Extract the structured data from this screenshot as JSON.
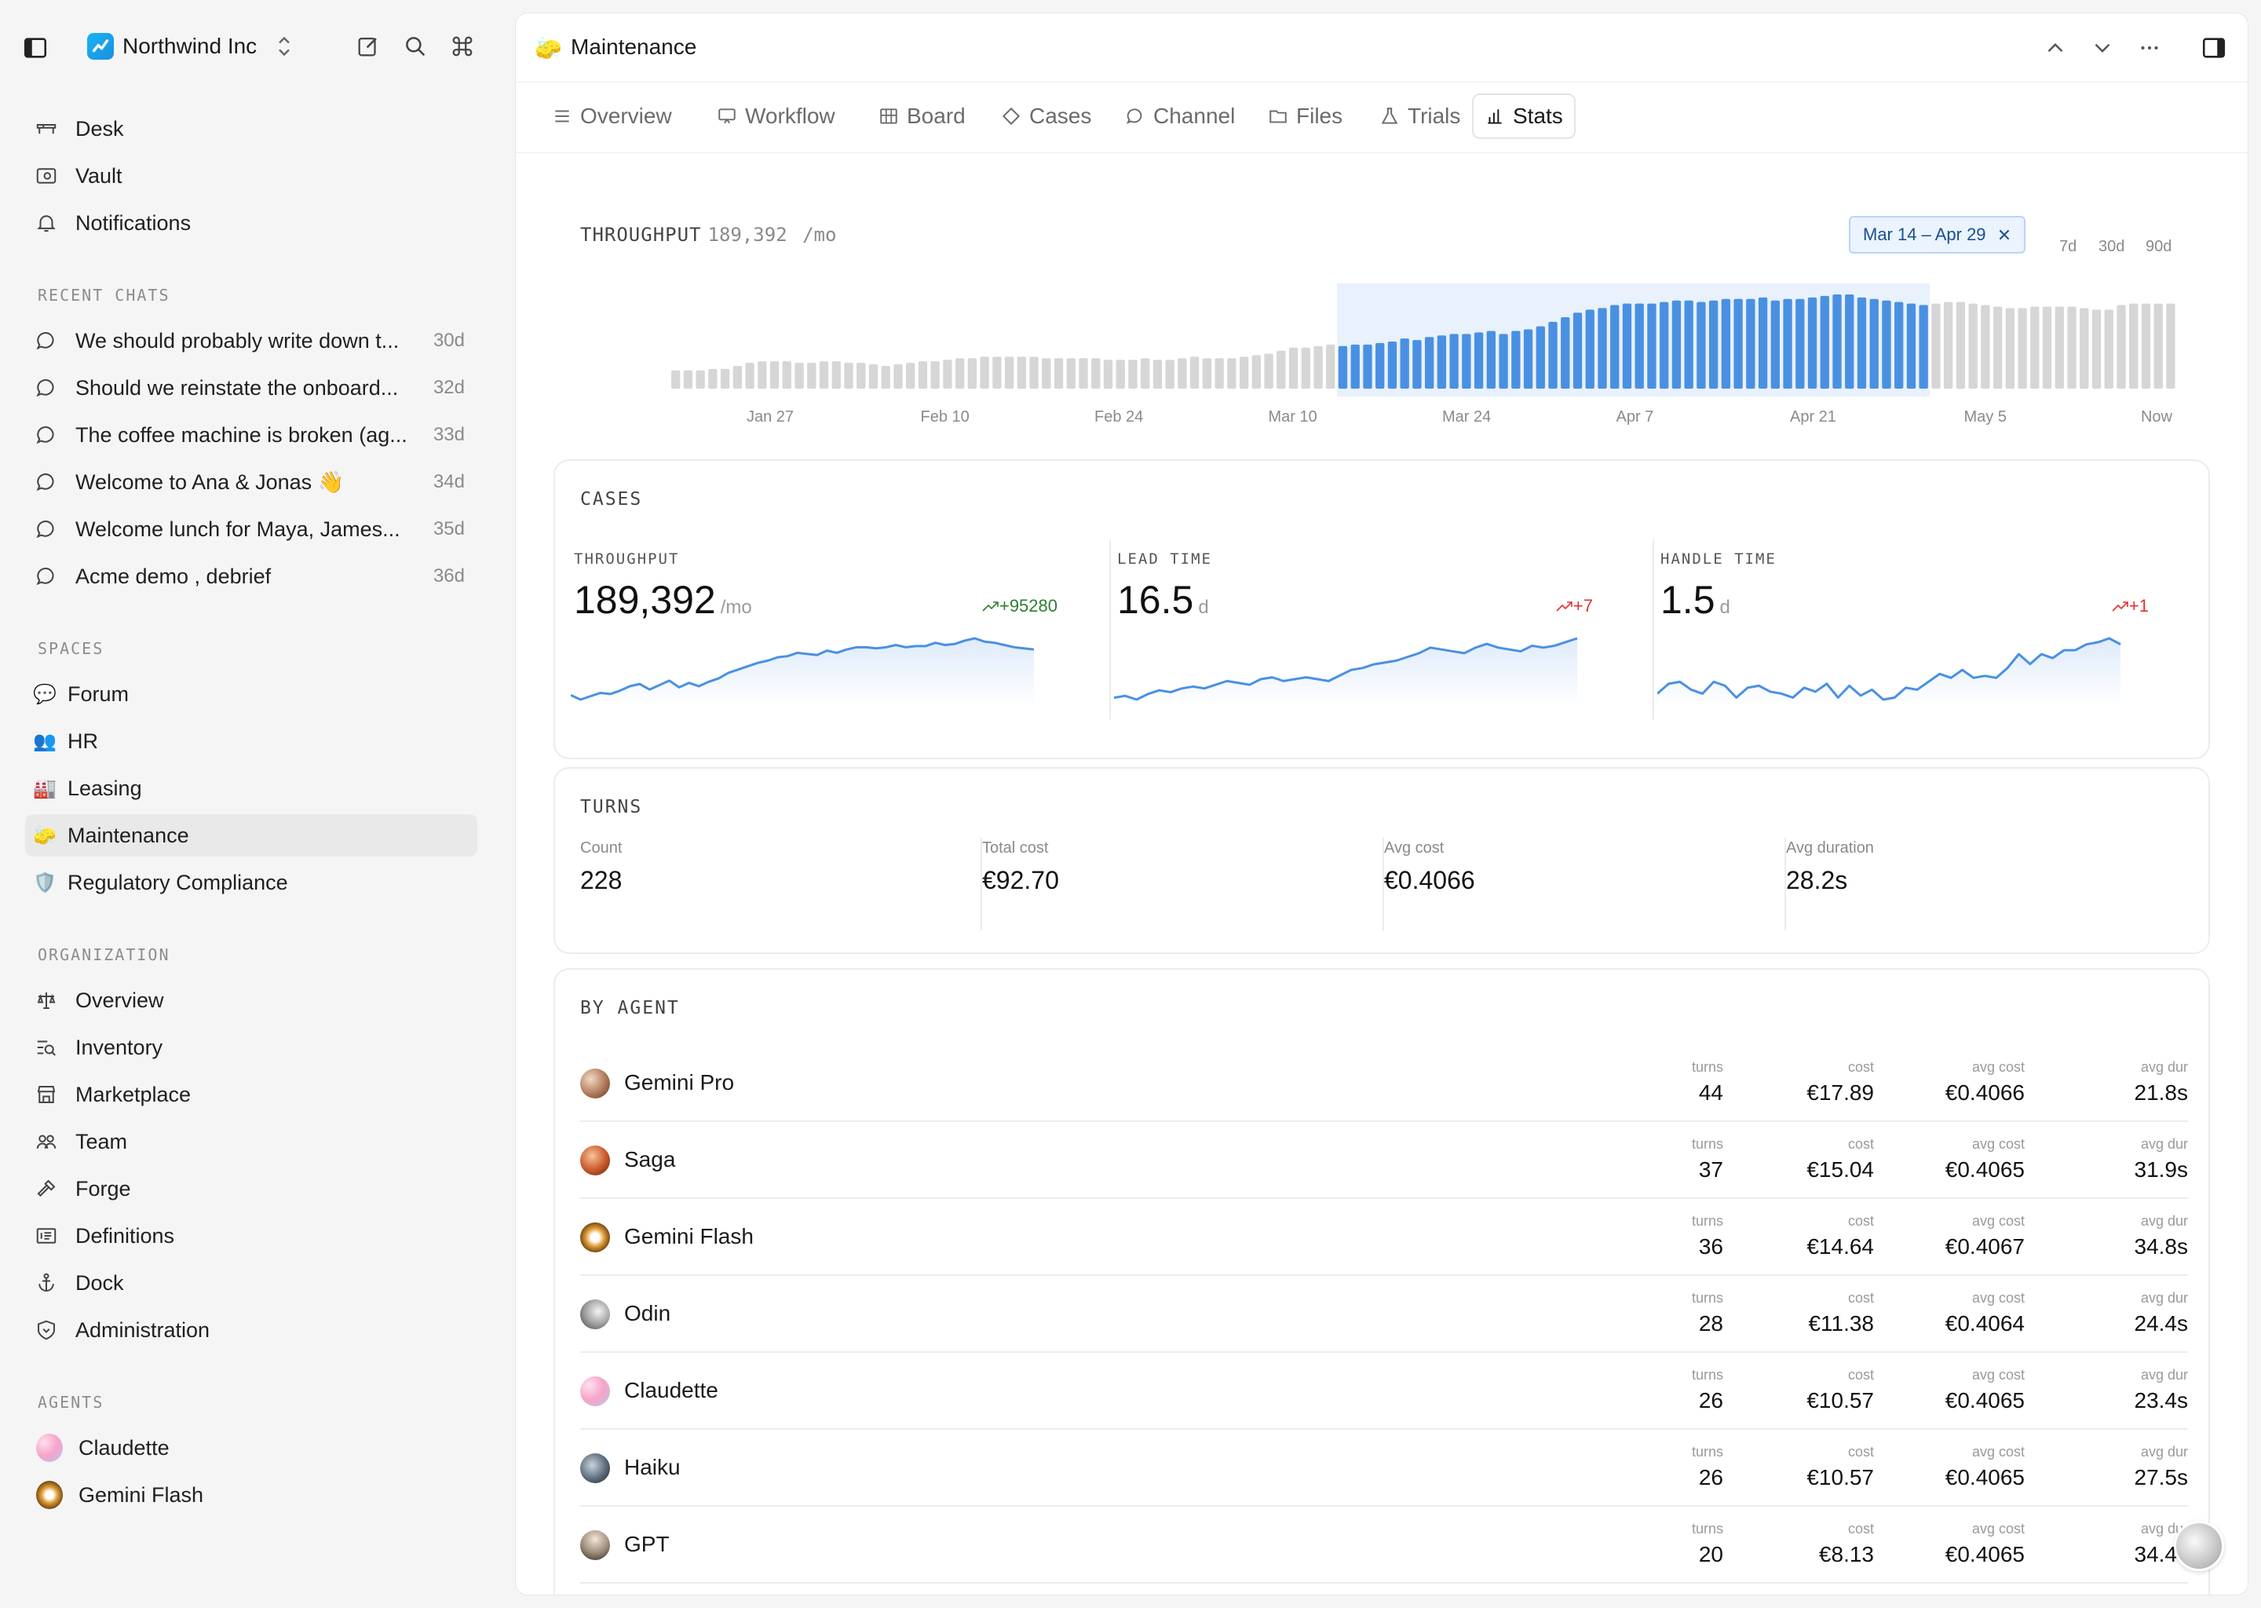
{
  "workspace": {
    "name": "Northwind Inc"
  },
  "sidebar": {
    "primary": [
      {
        "label": "Desk",
        "icon": "desk-icon"
      },
      {
        "label": "Vault",
        "icon": "vault-icon"
      },
      {
        "label": "Notifications",
        "icon": "bell-icon"
      }
    ],
    "recent_chats_title": "RECENT CHATS",
    "recent_chats": [
      {
        "label": "We should probably write down t...",
        "age": "30d"
      },
      {
        "label": "Should we reinstate the onboard...",
        "age": "32d"
      },
      {
        "label": "The coffee machine is broken (ag...",
        "age": "33d"
      },
      {
        "label": "Welcome to Ana & Jonas 👋",
        "age": "34d"
      },
      {
        "label": "Welcome lunch for Maya, James...",
        "age": "35d"
      },
      {
        "label": "Acme demo , debrief",
        "age": "36d"
      }
    ],
    "spaces_title": "SPACES",
    "spaces": [
      {
        "label": "Forum",
        "emoji": "💬"
      },
      {
        "label": "HR",
        "emoji": "👥"
      },
      {
        "label": "Leasing",
        "emoji": "🏭"
      },
      {
        "label": "Maintenance",
        "emoji": "🧽"
      },
      {
        "label": "Regulatory Compliance",
        "emoji": "🛡️"
      }
    ],
    "organization_title": "ORGANIZATION",
    "organization": [
      {
        "label": "Overview",
        "icon": "overview-icon"
      },
      {
        "label": "Inventory",
        "icon": "inventory-icon"
      },
      {
        "label": "Marketplace",
        "icon": "marketplace-icon"
      },
      {
        "label": "Team",
        "icon": "team-icon"
      },
      {
        "label": "Forge",
        "icon": "hammer-icon"
      },
      {
        "label": "Definitions",
        "icon": "definitions-icon"
      },
      {
        "label": "Dock",
        "icon": "anchor-icon"
      },
      {
        "label": "Administration",
        "icon": "shield-icon"
      }
    ],
    "agents_title": "AGENTS",
    "agents": [
      {
        "label": "Claudette"
      },
      {
        "label": "Gemini Flash"
      }
    ]
  },
  "header": {
    "title": "Maintenance",
    "space_emoji": "🧽"
  },
  "tabs": [
    {
      "label": "Overview",
      "icon": "list-icon"
    },
    {
      "label": "Workflow",
      "icon": "monitor-icon"
    },
    {
      "label": "Board",
      "icon": "board-icon"
    },
    {
      "label": "Cases",
      "icon": "diamond-icon"
    },
    {
      "label": "Channel",
      "icon": "chat-icon"
    },
    {
      "label": "Files",
      "icon": "folder-icon"
    },
    {
      "label": "Trials",
      "icon": "flask-icon"
    },
    {
      "label": "Stats",
      "icon": "bar-chart-icon"
    }
  ],
  "throughput": {
    "label": "THROUGHPUT",
    "value": "189,392",
    "unit": "/mo",
    "range_chip": "Mar 14 – Apr 29",
    "range_options": [
      "7d",
      "30d",
      "90d"
    ],
    "x_ticks": [
      "Jan 27",
      "Feb 10",
      "Feb 24",
      "Mar 10",
      "Mar 24",
      "Apr 7",
      "Apr 21",
      "May 5",
      "Now"
    ],
    "accent": "#4a90e2",
    "muted": "#d6d6d6",
    "highlight_bg": "#e8f1fc"
  },
  "chart_data": {
    "type": "bar",
    "title": "THROUGHPUT",
    "x_ticks": [
      "Jan 27",
      "Feb 10",
      "Feb 24",
      "Mar 10",
      "Mar 24",
      "Apr 7",
      "Apr 21",
      "May 5",
      "Now"
    ],
    "selected_range": [
      54,
      101
    ],
    "values": [
      12,
      12,
      12,
      13,
      13,
      15,
      17,
      18,
      18,
      18,
      17,
      17,
      18,
      18,
      17,
      17,
      16,
      15,
      16,
      17,
      18,
      18,
      19,
      20,
      20,
      21,
      21,
      21,
      21,
      21,
      20,
      20,
      20,
      20,
      20,
      19,
      19,
      19,
      20,
      19,
      19,
      20,
      21,
      20,
      20,
      20,
      21,
      22,
      23,
      25,
      27,
      27,
      28,
      29,
      28,
      29,
      29,
      30,
      31,
      33,
      32,
      34,
      35,
      36,
      36,
      37,
      38,
      36,
      38,
      39,
      41,
      44,
      47,
      50,
      52,
      53,
      55,
      56,
      56,
      56,
      57,
      58,
      58,
      57,
      58,
      59,
      59,
      59,
      60,
      58,
      59,
      59,
      60,
      61,
      62,
      62,
      60,
      59,
      58,
      57,
      56,
      55,
      56,
      57,
      57,
      56,
      55,
      54,
      53,
      53,
      54,
      54,
      54,
      54,
      53,
      52,
      52,
      55,
      56,
      56,
      56,
      56
    ]
  },
  "cases": {
    "title": "CASES",
    "metrics": [
      {
        "label": "THROUGHPUT",
        "value": "189,392",
        "unit": "/mo",
        "delta": "+95280",
        "delta_kind": "up",
        "spark": [
          50,
          46,
          49,
          52,
          51,
          54,
          58,
          60,
          55,
          59,
          63,
          57,
          61,
          58,
          62,
          65,
          70,
          73,
          76,
          79,
          81,
          84,
          85,
          88,
          87,
          86,
          90,
          88,
          91,
          93,
          93,
          92,
          93,
          95,
          93,
          94,
          94,
          97,
          95,
          96,
          99,
          101,
          98,
          97,
          95,
          93,
          92,
          91
        ]
      },
      {
        "label": "LEAD TIME",
        "value": "16.5",
        "unit": "d",
        "delta": "+7",
        "delta_kind": "bad",
        "spark": [
          10,
          11,
          9,
          12,
          14,
          13,
          15,
          16,
          15,
          17,
          19,
          18,
          17,
          20,
          21,
          19,
          20,
          21,
          20,
          19,
          22,
          25,
          26,
          28,
          29,
          30,
          32,
          34,
          37,
          36,
          35,
          34,
          37,
          39,
          37,
          36,
          35,
          38,
          37,
          38,
          40,
          42
        ]
      },
      {
        "label": "HANDLE TIME",
        "value": "1.5",
        "unit": "d",
        "delta": "+1",
        "delta_kind": "bad",
        "spark": [
          30,
          35,
          36,
          32,
          30,
          36,
          34,
          28,
          33,
          34,
          31,
          30,
          28,
          33,
          31,
          35,
          28,
          34,
          29,
          32,
          27,
          28,
          33,
          32,
          36,
          40,
          38,
          42,
          38,
          39,
          38,
          43,
          50,
          45,
          50,
          48,
          52,
          52,
          55,
          56,
          58,
          55
        ]
      }
    ]
  },
  "turns": {
    "title": "TURNS",
    "stats": [
      {
        "label": "Count",
        "value": "228"
      },
      {
        "label": "Total cost",
        "value": "€92.70"
      },
      {
        "label": "Avg cost",
        "value": "€0.4066"
      },
      {
        "label": "Avg duration",
        "value": "28.2s"
      }
    ]
  },
  "by_agent": {
    "title": "BY AGENT",
    "columns": [
      "turns",
      "cost",
      "avg cost",
      "avg dur"
    ],
    "rows": [
      {
        "name": "Gemini Pro",
        "turns": "44",
        "cost": "€17.89",
        "avg_cost": "€0.4066",
        "avg_dur": "21.8s"
      },
      {
        "name": "Saga",
        "turns": "37",
        "cost": "€15.04",
        "avg_cost": "€0.4065",
        "avg_dur": "31.9s"
      },
      {
        "name": "Gemini Flash",
        "turns": "36",
        "cost": "€14.64",
        "avg_cost": "€0.4067",
        "avg_dur": "34.8s"
      },
      {
        "name": "Odin",
        "turns": "28",
        "cost": "€11.38",
        "avg_cost": "€0.4064",
        "avg_dur": "24.4s"
      },
      {
        "name": "Claudette",
        "turns": "26",
        "cost": "€10.57",
        "avg_cost": "€0.4065",
        "avg_dur": "23.4s"
      },
      {
        "name": "Haiku",
        "turns": "26",
        "cost": "€10.57",
        "avg_cost": "€0.4065",
        "avg_dur": "27.5s"
      },
      {
        "name": "GPT",
        "turns": "20",
        "cost": "€8.13",
        "avg_cost": "€0.4065",
        "avg_dur": "34.4s"
      }
    ]
  }
}
